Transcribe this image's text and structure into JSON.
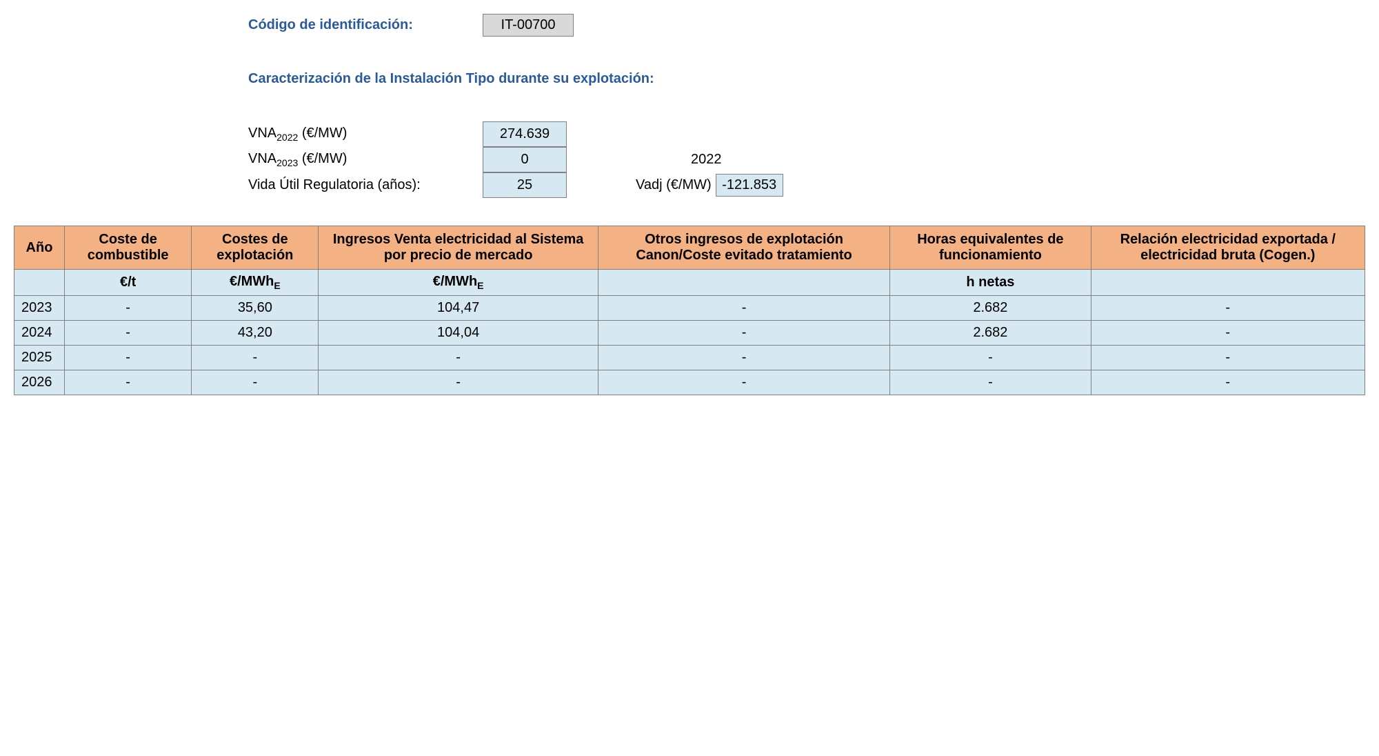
{
  "header": {
    "id_label": "Código de identificación:",
    "id_value": "IT-00700",
    "section_title": "Caracterización de la Instalación Tipo durante su explotación:"
  },
  "params": {
    "vna2022_label_pre": "VNA",
    "vna2022_sub": "2022",
    "vna2022_label_post": " (€/MW)",
    "vna2022_value": "274.639",
    "vna2023_label_pre": "VNA",
    "vna2023_sub": "2023",
    "vna2023_label_post": " (€/MW)",
    "vna2023_value": "0",
    "year_right": "2022",
    "vida_label": "Vida Útil Regulatoria (años):",
    "vida_value": "25",
    "vadj_label": "Vadj (€/MW)",
    "vadj_value": "-121.853"
  },
  "table": {
    "headers": {
      "ano": "Año",
      "combustible": "Coste de combustible",
      "explotacion": "Costes de explotación",
      "ingresos_venta": "Ingresos Venta electricidad al Sistema por precio de mercado",
      "otros_ingresos": "Otros ingresos de explotación Canon/Coste evitado tratamiento",
      "horas": "Horas equivalentes de funcionamiento",
      "relacion": "Relación electricidad exportada / electricidad bruta (Cogen.)"
    },
    "units": {
      "ano": "",
      "combustible": "€/t",
      "explotacion_pre": "€/MWh",
      "explotacion_sub": "E",
      "ingresos_pre": "€/MWh",
      "ingresos_sub": "E",
      "otros": "",
      "horas": "h netas",
      "relacion": ""
    },
    "rows": [
      {
        "ano": "2023",
        "combustible": "-",
        "explotacion": "35,60",
        "ingresos": "104,47",
        "otros": "-",
        "horas": "2.682",
        "relacion": "-"
      },
      {
        "ano": "2024",
        "combustible": "-",
        "explotacion": "43,20",
        "ingresos": "104,04",
        "otros": "-",
        "horas": "2.682",
        "relacion": "-"
      },
      {
        "ano": "2025",
        "combustible": "-",
        "explotacion": "-",
        "ingresos": "-",
        "otros": "-",
        "horas": "-",
        "relacion": "-"
      },
      {
        "ano": "2026",
        "combustible": "-",
        "explotacion": "-",
        "ingresos": "-",
        "otros": "-",
        "horas": "-",
        "relacion": "-"
      }
    ]
  },
  "colors": {
    "header_bg": "#f4b183",
    "cell_bg": "#d6e9f2",
    "border": "#808080",
    "blue_text": "#2a5a9e",
    "id_bg": "#d9d9d9"
  }
}
